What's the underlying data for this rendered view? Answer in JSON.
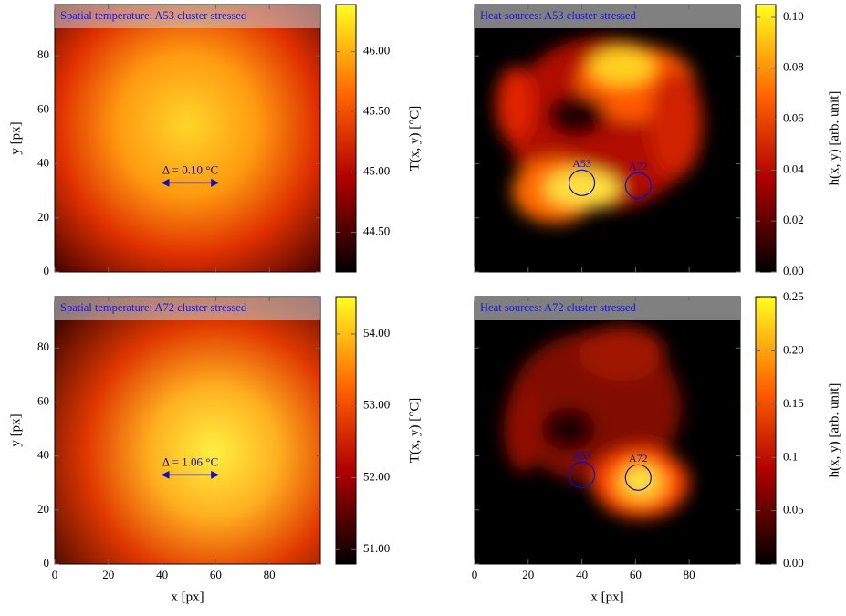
{
  "chart_data": [
    {
      "type": "heatmap",
      "title": "Spatial temperature: A53 cluster stressed",
      "ylabel": "y [px]",
      "xlim": [
        0,
        99
      ],
      "ylim": [
        0,
        99
      ],
      "xticks": [
        0,
        20,
        40,
        60,
        80
      ],
      "yticks": [
        0,
        20,
        40,
        60,
        80
      ],
      "xticklabels": false,
      "yticklabels": true,
      "colormap": "hot",
      "colorbar": {
        "label": "T(x, y) [°C]",
        "clim": [
          44.17,
          46.39
        ],
        "ticks": [
          {
            "value": 44.5,
            "label": "44.50"
          },
          {
            "value": 45,
            "label": "45.00"
          },
          {
            "value": 45.5,
            "label": "45.50"
          },
          {
            "value": 46,
            "label": "46.00"
          }
        ]
      },
      "delta": {
        "label": "Δ = 0.10 °C",
        "x": [
          40,
          61
        ],
        "y": 33
      }
    },
    {
      "type": "heatmap",
      "title": "Heat sources: A53 cluster stressed",
      "xlim": [
        0,
        99
      ],
      "ylim": [
        0,
        99
      ],
      "xticks": [
        0,
        20,
        40,
        60,
        80
      ],
      "yticks": [
        0,
        20,
        40,
        60,
        80
      ],
      "xticklabels": false,
      "yticklabels": false,
      "colormap": "hot",
      "colorbar": {
        "label": "h(x, y) [arb. unit]",
        "clim": [
          0,
          0.105
        ],
        "ticks": [
          {
            "value": 0,
            "label": "0.00"
          },
          0.02,
          0.04,
          0.06,
          0.08,
          {
            "value": 0.1,
            "label": "0.10"
          }
        ]
      },
      "markers": [
        {
          "label": "A53",
          "x": 40,
          "y": 33
        },
        {
          "label": "A72",
          "x": 61,
          "y": 32
        }
      ]
    },
    {
      "type": "heatmap",
      "title": "Spatial temperature: A72 cluster stressed",
      "xlabel": "x [px]",
      "ylabel": "y [px]",
      "xlim": [
        0,
        99
      ],
      "ylim": [
        0,
        99
      ],
      "xticks": [
        0,
        20,
        40,
        60,
        80
      ],
      "yticks": [
        0,
        20,
        40,
        60,
        80
      ],
      "xticklabels": true,
      "yticklabels": true,
      "colormap": "hot",
      "colorbar": {
        "label": "T(x, y) [°C]",
        "clim": [
          50.8,
          54.52
        ],
        "ticks": [
          {
            "value": 51,
            "label": "51.00"
          },
          {
            "value": 52,
            "label": "52.00"
          },
          {
            "value": 53,
            "label": "53.00"
          },
          {
            "value": 54,
            "label": "54.00"
          }
        ]
      },
      "delta": {
        "label": "Δ = 1.06 °C",
        "x": [
          40,
          61
        ],
        "y": 33
      }
    },
    {
      "type": "heatmap",
      "title": "Heat sources: A72 cluster stressed",
      "xlabel": "x [px]",
      "xlim": [
        0,
        99
      ],
      "ylim": [
        0,
        99
      ],
      "xticks": [
        0,
        20,
        40,
        60,
        80
      ],
      "yticks": [
        0,
        20,
        40,
        60,
        80
      ],
      "xticklabels": true,
      "yticklabels": false,
      "colormap": "hot",
      "colorbar": {
        "label": "h(x, y) [arb. unit]",
        "clim": [
          0,
          0.251
        ],
        "ticks": [
          {
            "value": 0,
            "label": "0.00"
          },
          0.05,
          0.1,
          0.15,
          {
            "value": 0.2,
            "label": "0.20"
          },
          0.25
        ]
      },
      "markers": [
        {
          "label": "A53",
          "x": 40,
          "y": 33
        },
        {
          "label": "A72",
          "x": 61,
          "y": 32
        }
      ]
    }
  ]
}
